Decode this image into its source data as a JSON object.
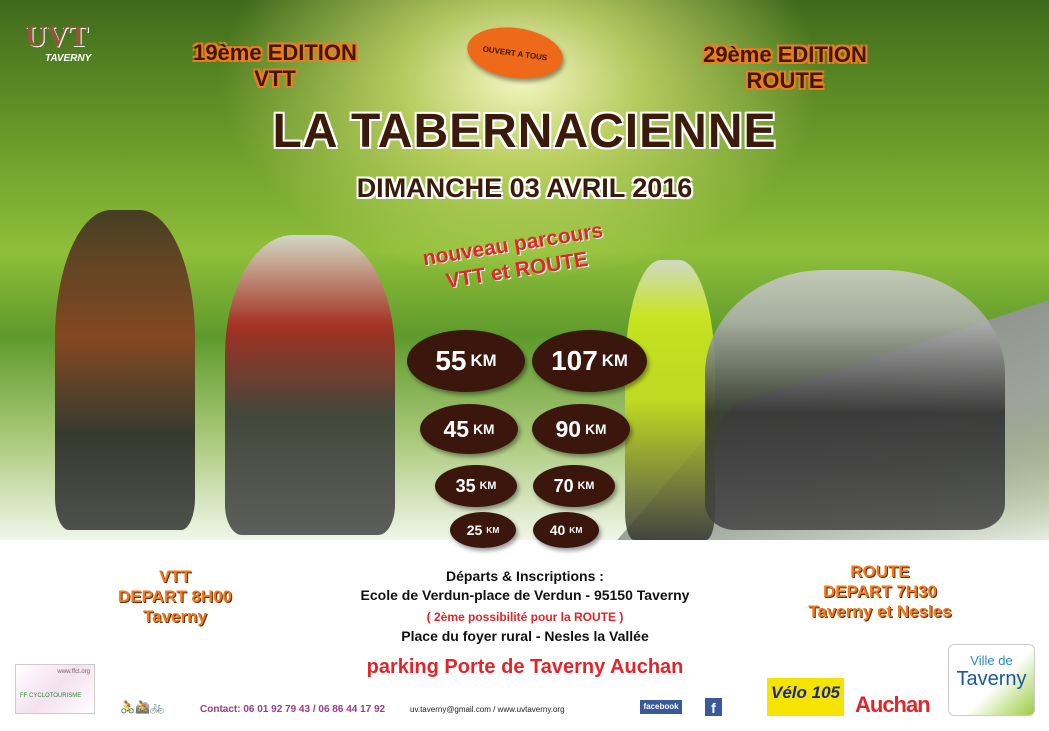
{
  "logo": {
    "name": "UVT",
    "sub": "TAVERNY"
  },
  "edition_vtt": {
    "line1": "19ème EDITION",
    "line2": "VTT"
  },
  "edition_route": {
    "line1": "29ème EDITION",
    "line2": "ROUTE"
  },
  "badge": "OUVERT A TOUS",
  "title": "LA TABERNACIENNE",
  "date": "DIMANCHE 03 AVRIL 2016",
  "new_routes": {
    "line1": "nouveau parcours",
    "line2": "VTT et ROUTE"
  },
  "distances_vtt": [
    {
      "value": "55",
      "unit": "KM"
    },
    {
      "value": "45",
      "unit": "KM"
    },
    {
      "value": "35",
      "unit": "KM"
    },
    {
      "value": "25",
      "unit": "KM"
    }
  ],
  "distances_route": [
    {
      "value": "107",
      "unit": "KM"
    },
    {
      "value": "90",
      "unit": "KM"
    },
    {
      "value": "70",
      "unit": "KM"
    },
    {
      "value": "40",
      "unit": "KM"
    }
  ],
  "vtt_start": {
    "line1": "VTT",
    "line2": "DEPART 8H00",
    "line3": "Taverny"
  },
  "route_start": {
    "line1": "ROUTE",
    "line2": "DEPART 7H30",
    "line3": "Taverny et Nesles"
  },
  "inscriptions": {
    "title": "Départs & Inscriptions :",
    "address": "Ecole de Verdun-place de Verdun - 95150 Taverny",
    "alt": "( 2ème possibilité pour la  ROUTE )",
    "alt_address": "Place du foyer rural - Nesles la Vallée"
  },
  "parking": "parking Porte de Taverny Auchan",
  "footer": {
    "ffct_site": "www.ffct.org",
    "ffct_name": "FF CYCLOTOURISME",
    "contact": "Contact:  06 01 92 79 43 / 06 86 44 17 92",
    "email_web": "uv.taverny@gmail.com  /  www.uvtaverny.org",
    "facebook": "facebook",
    "fb_icon": "f",
    "velo105": "Vélo 105",
    "auchan": "Auchan",
    "ville1": "Ville de",
    "ville2": "Taverny"
  },
  "colors": {
    "orange": "#ee7a22",
    "brown": "#3a160c",
    "parking_red": "#e0262a",
    "contact_purple": "#9b3a8a"
  }
}
